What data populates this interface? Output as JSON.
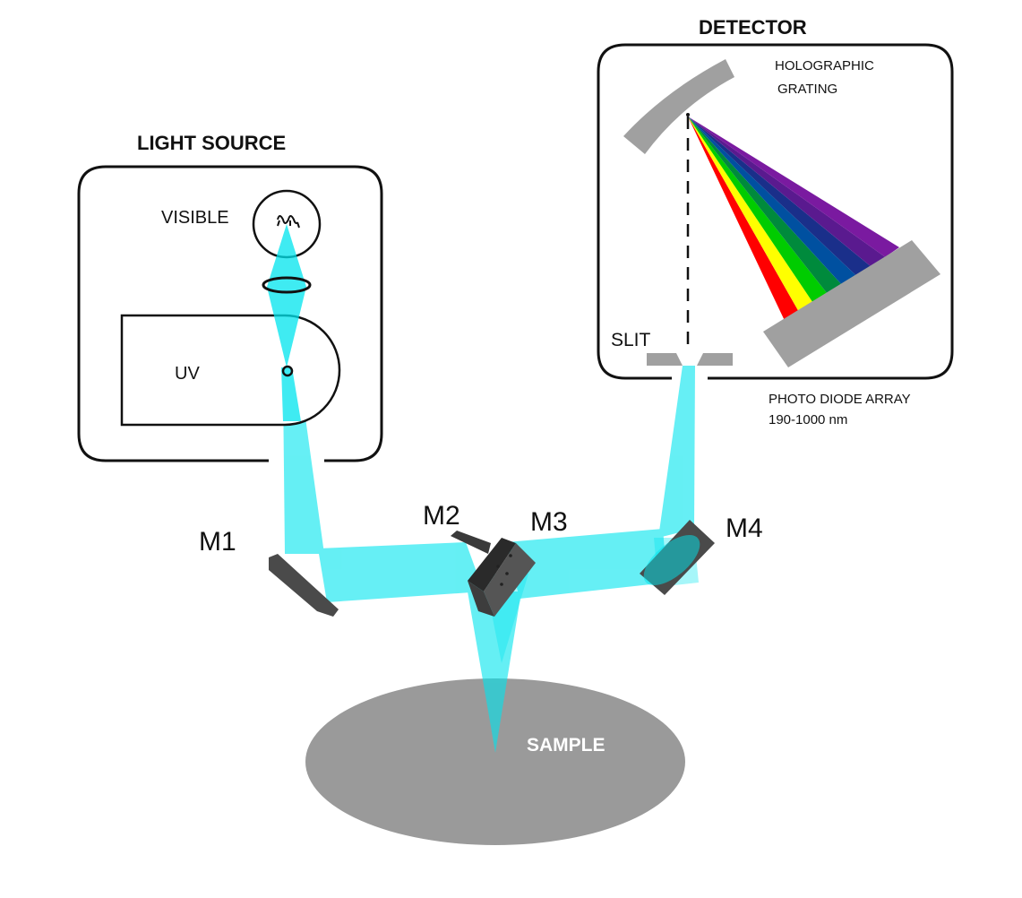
{
  "labels": {
    "light_source": "LIGHT SOURCE",
    "visible": "VISIBLE",
    "uv": "UV",
    "detector": "DETECTOR",
    "holographic": "HOLOGRAPHIC",
    "grating": "GRATING",
    "slit": "SLIT",
    "photo_diode_array": "PHOTO DIODE ARRAY",
    "wavelength_range": "190-1000 nm",
    "m1": "M1",
    "m2": "M2",
    "m3": "M3",
    "m4": "M4",
    "sample": "SAMPLE"
  },
  "colors": {
    "beam": "#00e5ee",
    "mirror_dark": "#4a4a4a",
    "sample": "#9a9a9a",
    "grating": "#a0a0a0",
    "spectrum": [
      "#ff0000",
      "#ffff00",
      "#00cc00",
      "#008a3c",
      "#0050a0",
      "#1a2f8a",
      "#5a1a8f",
      "#7a1aa0"
    ]
  }
}
